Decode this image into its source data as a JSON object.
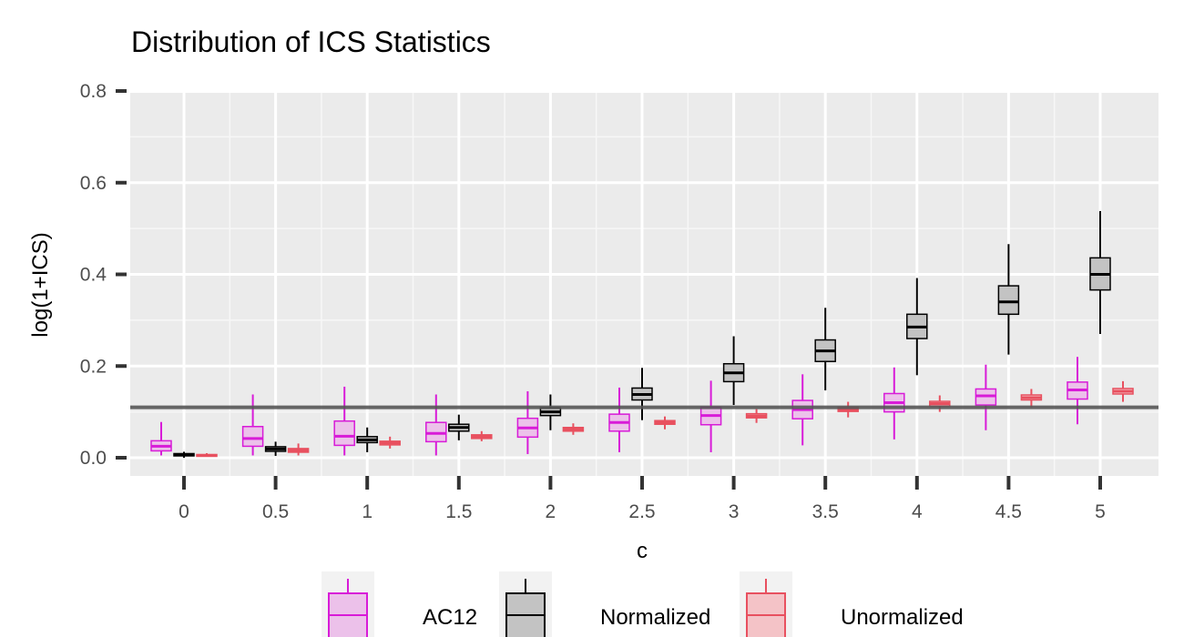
{
  "chart_data": {
    "type": "boxplot",
    "title": "Distribution of ICS Statistics",
    "xlabel": "c",
    "ylabel": "log(1+ICS)",
    "ylim": [
      -0.04,
      0.82
    ],
    "yticks": [
      0.0,
      0.2,
      0.4,
      0.6,
      0.8
    ],
    "ytick_labels": [
      "0.0",
      "0.2",
      "0.4",
      "0.6",
      "0.8"
    ],
    "categories": [
      "0",
      "0.5",
      "1",
      "1.5",
      "2",
      "2.5",
      "3",
      "3.5",
      "4",
      "4.5",
      "5"
    ],
    "reference_line": 0.11,
    "series": [
      {
        "name": "AC12",
        "stroke": "#d81bd8",
        "fill": "#ecc1ea",
        "boxes": [
          {
            "min": 0.005,
            "q1": 0.015,
            "median": 0.025,
            "q3": 0.037,
            "max": 0.078
          },
          {
            "min": 0.005,
            "q1": 0.025,
            "median": 0.042,
            "q3": 0.068,
            "max": 0.138
          },
          {
            "min": 0.005,
            "q1": 0.027,
            "median": 0.047,
            "q3": 0.08,
            "max": 0.155
          },
          {
            "min": 0.005,
            "q1": 0.035,
            "median": 0.053,
            "q3": 0.077,
            "max": 0.138
          },
          {
            "min": 0.008,
            "q1": 0.045,
            "median": 0.065,
            "q3": 0.086,
            "max": 0.145
          },
          {
            "min": 0.012,
            "q1": 0.058,
            "median": 0.077,
            "q3": 0.095,
            "max": 0.153
          },
          {
            "min": 0.012,
            "q1": 0.072,
            "median": 0.092,
            "q3": 0.11,
            "max": 0.168
          },
          {
            "min": 0.027,
            "q1": 0.085,
            "median": 0.105,
            "q3": 0.125,
            "max": 0.182
          },
          {
            "min": 0.04,
            "q1": 0.1,
            "median": 0.12,
            "q3": 0.14,
            "max": 0.197
          },
          {
            "min": 0.06,
            "q1": 0.115,
            "median": 0.135,
            "q3": 0.15,
            "max": 0.203
          },
          {
            "min": 0.073,
            "q1": 0.128,
            "median": 0.148,
            "q3": 0.165,
            "max": 0.22
          }
        ]
      },
      {
        "name": "Normalized",
        "stroke": "#000000",
        "fill": "#c3c3c3",
        "boxes": [
          {
            "min": 0.0,
            "q1": 0.004,
            "median": 0.006,
            "q3": 0.009,
            "max": 0.013
          },
          {
            "min": 0.004,
            "q1": 0.014,
            "median": 0.019,
            "q3": 0.024,
            "max": 0.035
          },
          {
            "min": 0.012,
            "q1": 0.033,
            "median": 0.039,
            "q3": 0.046,
            "max": 0.066
          },
          {
            "min": 0.038,
            "q1": 0.058,
            "median": 0.066,
            "q3": 0.073,
            "max": 0.094
          },
          {
            "min": 0.06,
            "q1": 0.092,
            "median": 0.1,
            "q3": 0.109,
            "max": 0.138
          },
          {
            "min": 0.082,
            "q1": 0.126,
            "median": 0.138,
            "q3": 0.152,
            "max": 0.196
          },
          {
            "min": 0.115,
            "q1": 0.166,
            "median": 0.185,
            "q3": 0.205,
            "max": 0.265
          },
          {
            "min": 0.147,
            "q1": 0.21,
            "median": 0.233,
            "q3": 0.257,
            "max": 0.327
          },
          {
            "min": 0.18,
            "q1": 0.26,
            "median": 0.285,
            "q3": 0.313,
            "max": 0.392
          },
          {
            "min": 0.225,
            "q1": 0.313,
            "median": 0.34,
            "q3": 0.375,
            "max": 0.466
          },
          {
            "min": 0.27,
            "q1": 0.366,
            "median": 0.4,
            "q3": 0.436,
            "max": 0.538
          }
        ]
      },
      {
        "name": "Unormalized",
        "stroke": "#e8505f",
        "fill": "#f4c3c7",
        "boxes": [
          {
            "min": 0.002,
            "q1": 0.004,
            "median": 0.005,
            "q3": 0.007,
            "max": 0.01
          },
          {
            "min": 0.005,
            "q1": 0.012,
            "median": 0.016,
            "q3": 0.02,
            "max": 0.031
          },
          {
            "min": 0.02,
            "q1": 0.028,
            "median": 0.032,
            "q3": 0.036,
            "max": 0.046
          },
          {
            "min": 0.036,
            "q1": 0.042,
            "median": 0.046,
            "q3": 0.05,
            "max": 0.058
          },
          {
            "min": 0.05,
            "q1": 0.058,
            "median": 0.062,
            "q3": 0.066,
            "max": 0.075
          },
          {
            "min": 0.062,
            "q1": 0.073,
            "median": 0.077,
            "q3": 0.081,
            "max": 0.09
          },
          {
            "min": 0.076,
            "q1": 0.087,
            "median": 0.091,
            "q3": 0.096,
            "max": 0.106
          },
          {
            "min": 0.088,
            "q1": 0.101,
            "median": 0.105,
            "q3": 0.11,
            "max": 0.122
          },
          {
            "min": 0.1,
            "q1": 0.113,
            "median": 0.118,
            "q3": 0.123,
            "max": 0.136
          },
          {
            "min": 0.11,
            "q1": 0.126,
            "median": 0.131,
            "q3": 0.137,
            "max": 0.15
          },
          {
            "min": 0.122,
            "q1": 0.139,
            "median": 0.145,
            "q3": 0.151,
            "max": 0.167
          }
        ]
      }
    ],
    "legend": {
      "position": "bottom",
      "items": [
        "AC12",
        "Normalized",
        "Unormalized"
      ]
    },
    "colors": {
      "panel_background": "#ebebeb",
      "grid_major": "#ffffff",
      "reference_line": "#555555"
    }
  }
}
